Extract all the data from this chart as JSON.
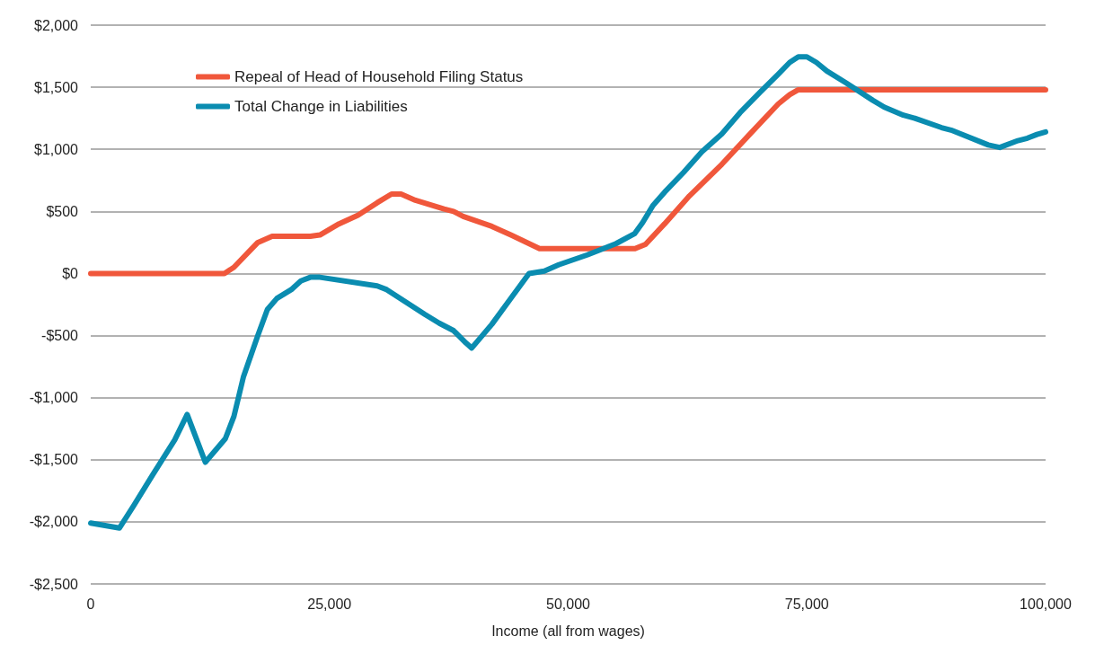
{
  "chart_data": {
    "type": "line",
    "xlabel": "Income (all from wages)",
    "legend": "top left",
    "grid": "y",
    "line_style": "solid",
    "marker": "none",
    "xlim": [
      0,
      100000
    ],
    "xticks": [
      0,
      {
        "value": 25000,
        "label": "25,000"
      },
      {
        "value": 50000,
        "label": "50,000"
      },
      {
        "value": 75000,
        "label": "75,000"
      },
      {
        "value": 100000,
        "label": "100,000"
      }
    ],
    "ylim": [
      -2500,
      2000
    ],
    "yticks": [
      {
        "value": -2500,
        "label": "-$2,500"
      },
      {
        "value": -2000,
        "label": "-$2,000"
      },
      {
        "value": -1500,
        "label": "-$1,500"
      },
      {
        "value": -1000,
        "label": "-$1,000"
      },
      {
        "value": -500,
        "label": "-$500"
      },
      {
        "value": 0,
        "label": "$0"
      },
      {
        "value": 500,
        "label": "$500"
      },
      {
        "value": 1000,
        "label": "$1,000"
      },
      {
        "value": 1500,
        "label": "$1,500"
      },
      {
        "value": 2000,
        "label": "$2,000"
      }
    ],
    "series": [
      {
        "name": "Repeal of Head of Household Filing Status",
        "color": "#f0573b",
        "x": [
          0,
          14000,
          15000,
          16500,
          17500,
          19000,
          23000,
          24000,
          26000,
          28000,
          30000,
          31500,
          32500,
          34000,
          37000,
          38000,
          39000,
          42000,
          44000,
          47000,
          57000,
          58100,
          60100,
          62700,
          66100,
          69000,
          72000,
          73200,
          74100,
          100000
        ],
        "values": [
          0,
          0,
          50,
          170,
          250,
          300,
          300,
          310,
          400,
          470,
          570,
          640,
          640,
          590,
          520,
          500,
          460,
          380,
          310,
          200,
          200,
          235,
          400,
          625,
          880,
          1120,
          1365,
          1440,
          1480,
          1480
        ]
      },
      {
        "name": "Total Change in Liabilities",
        "color": "#0a8cb0",
        "x": [
          0,
          1500,
          3000,
          4500,
          6500,
          8800,
          10100,
          12000,
          14100,
          15000,
          16000,
          17500,
          18500,
          19500,
          21000,
          22000,
          23000,
          24000,
          30000,
          31000,
          33000,
          35000,
          36500,
          38000,
          39300,
          39900,
          42000,
          43900,
          45900,
          47500,
          49000,
          52000,
          55000,
          56950,
          57800,
          58900,
          60100,
          62100,
          64000,
          66100,
          68000,
          70100,
          72000,
          73200,
          74100,
          75000,
          76000,
          77100,
          79100,
          81900,
          83100,
          85100,
          86300,
          89100,
          90100,
          94000,
          95200,
          97100,
          98100,
          99100,
          100000
        ],
        "values": [
          -2010,
          -2030,
          -2050,
          -1870,
          -1620,
          -1340,
          -1135,
          -1520,
          -1330,
          -1150,
          -830,
          -500,
          -290,
          -200,
          -130,
          -60,
          -30,
          -30,
          -100,
          -130,
          -230,
          -330,
          -400,
          -460,
          -560,
          -600,
          -410,
          -210,
          0,
          20,
          70,
          150,
          240,
          320,
          410,
          550,
          655,
          815,
          980,
          1125,
          1295,
          1460,
          1605,
          1700,
          1745,
          1745,
          1700,
          1630,
          1535,
          1395,
          1340,
          1275,
          1250,
          1175,
          1155,
          1035,
          1015,
          1070,
          1090,
          1120,
          1140
        ]
      }
    ]
  }
}
